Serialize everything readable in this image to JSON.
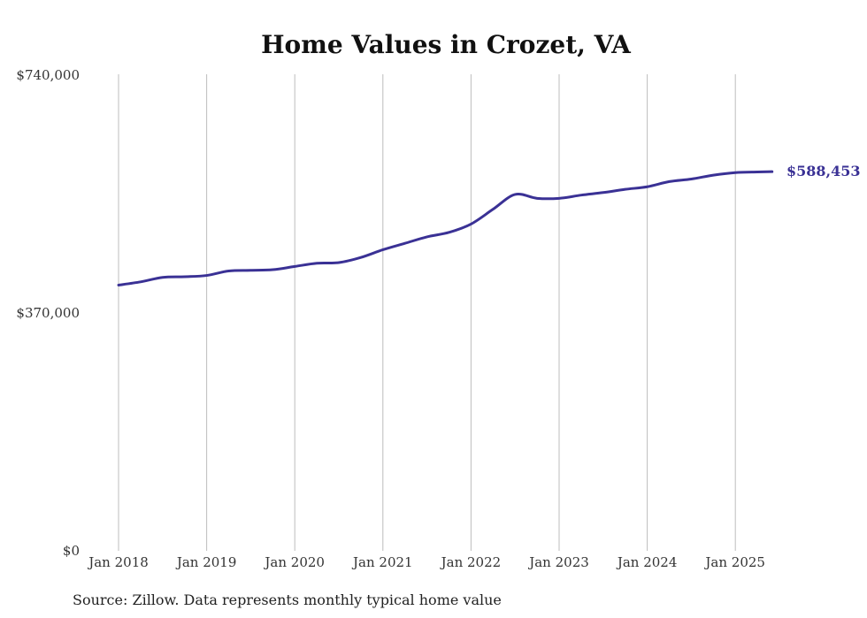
{
  "chart_data": {
    "type": "line",
    "title": "Home Values in Crozet, VA",
    "xlabel": "",
    "ylabel": "",
    "ylim": [
      0,
      740000
    ],
    "y_ticks": [
      {
        "value": 0,
        "label": "$0"
      },
      {
        "value": 370000,
        "label": "$370,000"
      },
      {
        "value": 740000,
        "label": "$740,000"
      }
    ],
    "x_range": [
      "2018-01",
      "2025-06"
    ],
    "x_ticks": [
      {
        "date": "2018-01",
        "label": "Jan 2018"
      },
      {
        "date": "2019-01",
        "label": "Jan 2019"
      },
      {
        "date": "2020-01",
        "label": "Jan 2020"
      },
      {
        "date": "2021-01",
        "label": "Jan 2021"
      },
      {
        "date": "2022-01",
        "label": "Jan 2022"
      },
      {
        "date": "2023-01",
        "label": "Jan 2023"
      },
      {
        "date": "2024-01",
        "label": "Jan 2024"
      },
      {
        "date": "2025-01",
        "label": "Jan 2025"
      }
    ],
    "grid": "vertical",
    "series_color": "#3a3195",
    "series": [
      {
        "points": [
          {
            "x": "2018-01",
            "y": 412000
          },
          {
            "x": "2018-04",
            "y": 417000
          },
          {
            "x": "2018-07",
            "y": 424000
          },
          {
            "x": "2018-10",
            "y": 425000
          },
          {
            "x": "2019-01",
            "y": 427000
          },
          {
            "x": "2019-04",
            "y": 434000
          },
          {
            "x": "2019-07",
            "y": 435000
          },
          {
            "x": "2019-10",
            "y": 436000
          },
          {
            "x": "2020-01",
            "y": 441000
          },
          {
            "x": "2020-04",
            "y": 446000
          },
          {
            "x": "2020-07",
            "y": 447000
          },
          {
            "x": "2020-10",
            "y": 455000
          },
          {
            "x": "2021-01",
            "y": 467000
          },
          {
            "x": "2021-04",
            "y": 477000
          },
          {
            "x": "2021-07",
            "y": 487000
          },
          {
            "x": "2021-10",
            "y": 494000
          },
          {
            "x": "2022-01",
            "y": 507000
          },
          {
            "x": "2022-04",
            "y": 530000
          },
          {
            "x": "2022-07",
            "y": 553000
          },
          {
            "x": "2022-10",
            "y": 547000
          },
          {
            "x": "2023-01",
            "y": 547000
          },
          {
            "x": "2023-04",
            "y": 552000
          },
          {
            "x": "2023-07",
            "y": 556000
          },
          {
            "x": "2023-10",
            "y": 561000
          },
          {
            "x": "2024-01",
            "y": 565000
          },
          {
            "x": "2024-04",
            "y": 573000
          },
          {
            "x": "2024-07",
            "y": 577000
          },
          {
            "x": "2024-10",
            "y": 583000
          },
          {
            "x": "2025-01",
            "y": 587000
          },
          {
            "x": "2025-04",
            "y": 588000
          },
          {
            "x": "2025-06",
            "y": 588453
          }
        ]
      }
    ],
    "end_label": "$588,453",
    "source": "Source: Zillow. Data represents monthly typical home value"
  }
}
